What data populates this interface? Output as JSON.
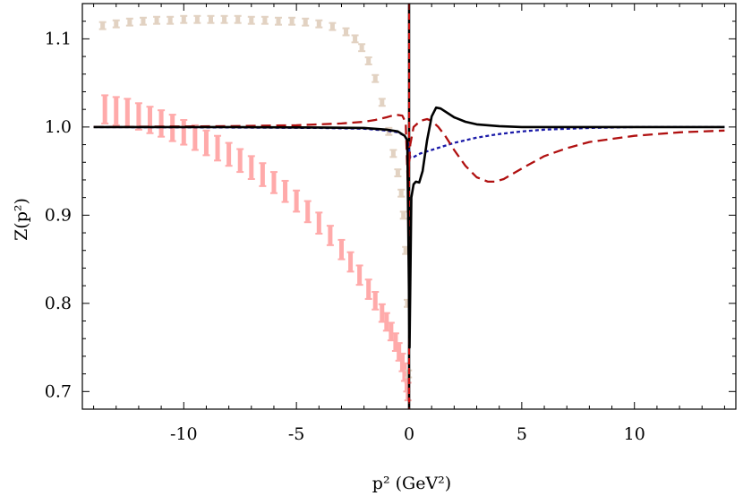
{
  "chart_data": {
    "type": "line",
    "xlabel": "p² (GeV²)",
    "ylabel": "Z(p²)",
    "xlim": [
      -14.5,
      14.5
    ],
    "ylim": [
      0.68,
      1.14
    ],
    "x_ticks": [
      -10,
      -5,
      0,
      5,
      10
    ],
    "x_tick_labels": [
      "-10",
      "-5",
      "0",
      "5",
      "10"
    ],
    "y_ticks": [
      0.7,
      0.8,
      0.9,
      1.0,
      1.1
    ],
    "y_tick_labels": [
      "0.7",
      "0.8",
      "0.9",
      "1.0",
      "1.1"
    ],
    "grid": false,
    "legend": "none",
    "series": [
      {
        "kind": "errorbar",
        "color": "#ffaaaa",
        "x": [
          -13.5,
          -13.0,
          -12.5,
          -12.0,
          -11.5,
          -11.0,
          -10.5,
          -10.0,
          -9.5,
          -9.0,
          -8.5,
          -8.0,
          -7.5,
          -7.0,
          -6.5,
          -6.0,
          -5.5,
          -5.0,
          -4.5,
          -4.0,
          -3.5,
          -3.0,
          -2.6,
          -2.2,
          -1.8,
          -1.5,
          -1.2,
          -1.0,
          -0.8,
          -0.6,
          -0.45,
          -0.3,
          -0.2,
          -0.1,
          -0.05
        ],
        "y": [
          1.02,
          1.018,
          1.016,
          1.012,
          1.008,
          1.004,
          0.999,
          0.994,
          0.988,
          0.982,
          0.976,
          0.969,
          0.962,
          0.954,
          0.946,
          0.937,
          0.927,
          0.916,
          0.904,
          0.891,
          0.877,
          0.861,
          0.847,
          0.832,
          0.816,
          0.803,
          0.789,
          0.779,
          0.768,
          0.756,
          0.745,
          0.733,
          0.722,
          0.71,
          0.7
        ],
        "err": [
          0.016,
          0.016,
          0.016,
          0.015,
          0.015,
          0.015,
          0.015,
          0.014,
          0.014,
          0.014,
          0.014,
          0.013,
          0.013,
          0.013,
          0.013,
          0.012,
          0.012,
          0.012,
          0.012,
          0.012,
          0.011,
          0.011,
          0.011,
          0.011,
          0.011,
          0.01,
          0.01,
          0.01,
          0.01,
          0.01,
          0.01,
          0.01,
          0.01,
          0.01,
          0.01
        ]
      },
      {
        "kind": "errorbar",
        "color": "#e2d2c2",
        "x": [
          -13.6,
          -13.0,
          -12.4,
          -11.8,
          -11.2,
          -10.6,
          -10.0,
          -9.4,
          -8.8,
          -8.2,
          -7.6,
          -7.0,
          -6.4,
          -5.8,
          -5.2,
          -4.6,
          -4.0,
          -3.4,
          -2.8,
          -2.4,
          -2.1,
          -1.8,
          -1.5,
          -1.2,
          -0.9,
          -0.7,
          -0.5,
          -0.35,
          -0.25,
          -0.15,
          -0.08,
          -0.03
        ],
        "y": [
          1.115,
          1.117,
          1.119,
          1.12,
          1.121,
          1.121,
          1.122,
          1.122,
          1.122,
          1.122,
          1.122,
          1.121,
          1.121,
          1.12,
          1.12,
          1.119,
          1.117,
          1.114,
          1.108,
          1.1,
          1.09,
          1.075,
          1.055,
          1.028,
          0.995,
          0.97,
          0.948,
          0.925,
          0.9,
          0.86,
          0.8,
          0.72
        ],
        "err": [
          0.004,
          0.004,
          0.004,
          0.004,
          0.004,
          0.004,
          0.004,
          0.004,
          0.004,
          0.004,
          0.004,
          0.004,
          0.004,
          0.004,
          0.004,
          0.004,
          0.004,
          0.004,
          0.004,
          0.004,
          0.004,
          0.004,
          0.004,
          0.004,
          0.004,
          0.004,
          0.004,
          0.004,
          0.004,
          0.004,
          0.004,
          0.004
        ]
      },
      {
        "kind": "line",
        "style": "short-dashed",
        "color": "#1a1aa8",
        "x": [
          -14.0,
          -8.0,
          -4.0,
          -2.0,
          -1.0,
          -0.5,
          -0.2,
          -0.05,
          0.05,
          0.2,
          0.5,
          1.0,
          1.5,
          2.0,
          3.0,
          4.0,
          5.0,
          6.0,
          7.0,
          8.0,
          10.0,
          12.0,
          14.0
        ],
        "y": [
          1.0,
          0.9995,
          0.999,
          0.998,
          0.996,
          0.994,
          0.99,
          0.983,
          0.965,
          0.966,
          0.97,
          0.974,
          0.978,
          0.982,
          0.988,
          0.992,
          0.995,
          0.997,
          0.998,
          0.999,
          1.0,
          1.0,
          1.0
        ]
      },
      {
        "kind": "line",
        "style": "long-dashed",
        "color": "#b01010",
        "x": [
          -14.0,
          -8.0,
          -5.0,
          -3.0,
          -2.0,
          -1.5,
          -1.0,
          -0.6,
          -0.3,
          -0.15,
          -0.05,
          0.05,
          0.2,
          0.5,
          0.8,
          1.0,
          1.3,
          1.6,
          2.0,
          2.5,
          3.0,
          3.5,
          3.8,
          4.2,
          5.0,
          6.0,
          7.0,
          8.0,
          10.0,
          12.0,
          14.0
        ],
        "y": [
          1.0,
          1.001,
          1.002,
          1.004,
          1.006,
          1.008,
          1.011,
          1.014,
          1.013,
          1.005,
          0.93,
          0.98,
          1.0,
          1.007,
          1.009,
          1.007,
          1.0,
          0.99,
          0.974,
          0.956,
          0.943,
          0.938,
          0.938,
          0.941,
          0.953,
          0.967,
          0.976,
          0.983,
          0.99,
          0.994,
          0.996
        ]
      },
      {
        "kind": "line",
        "style": "solid",
        "color": "#000000",
        "x": [
          -14.0,
          -8.0,
          -4.0,
          -2.0,
          -1.0,
          -0.5,
          -0.2,
          -0.08,
          0.02,
          0.1,
          0.2,
          0.3,
          0.45,
          0.6,
          0.8,
          1.0,
          1.2,
          1.4,
          1.7,
          2.0,
          2.5,
          3.0,
          4.0,
          5.0,
          7.0,
          10.0,
          14.0
        ],
        "y": [
          1.0,
          1.0,
          0.9995,
          0.999,
          0.997,
          0.995,
          0.99,
          0.985,
          0.75,
          0.92,
          0.935,
          0.938,
          0.937,
          0.95,
          0.985,
          1.012,
          1.022,
          1.021,
          1.016,
          1.011,
          1.006,
          1.003,
          1.001,
          1.0,
          1.0,
          1.0,
          1.0
        ]
      }
    ],
    "vertical_lines": [
      {
        "x": 0,
        "color": "#000000",
        "style": "solid"
      },
      {
        "x": 0,
        "color": "#cc1111",
        "style": "dashed"
      }
    ]
  }
}
